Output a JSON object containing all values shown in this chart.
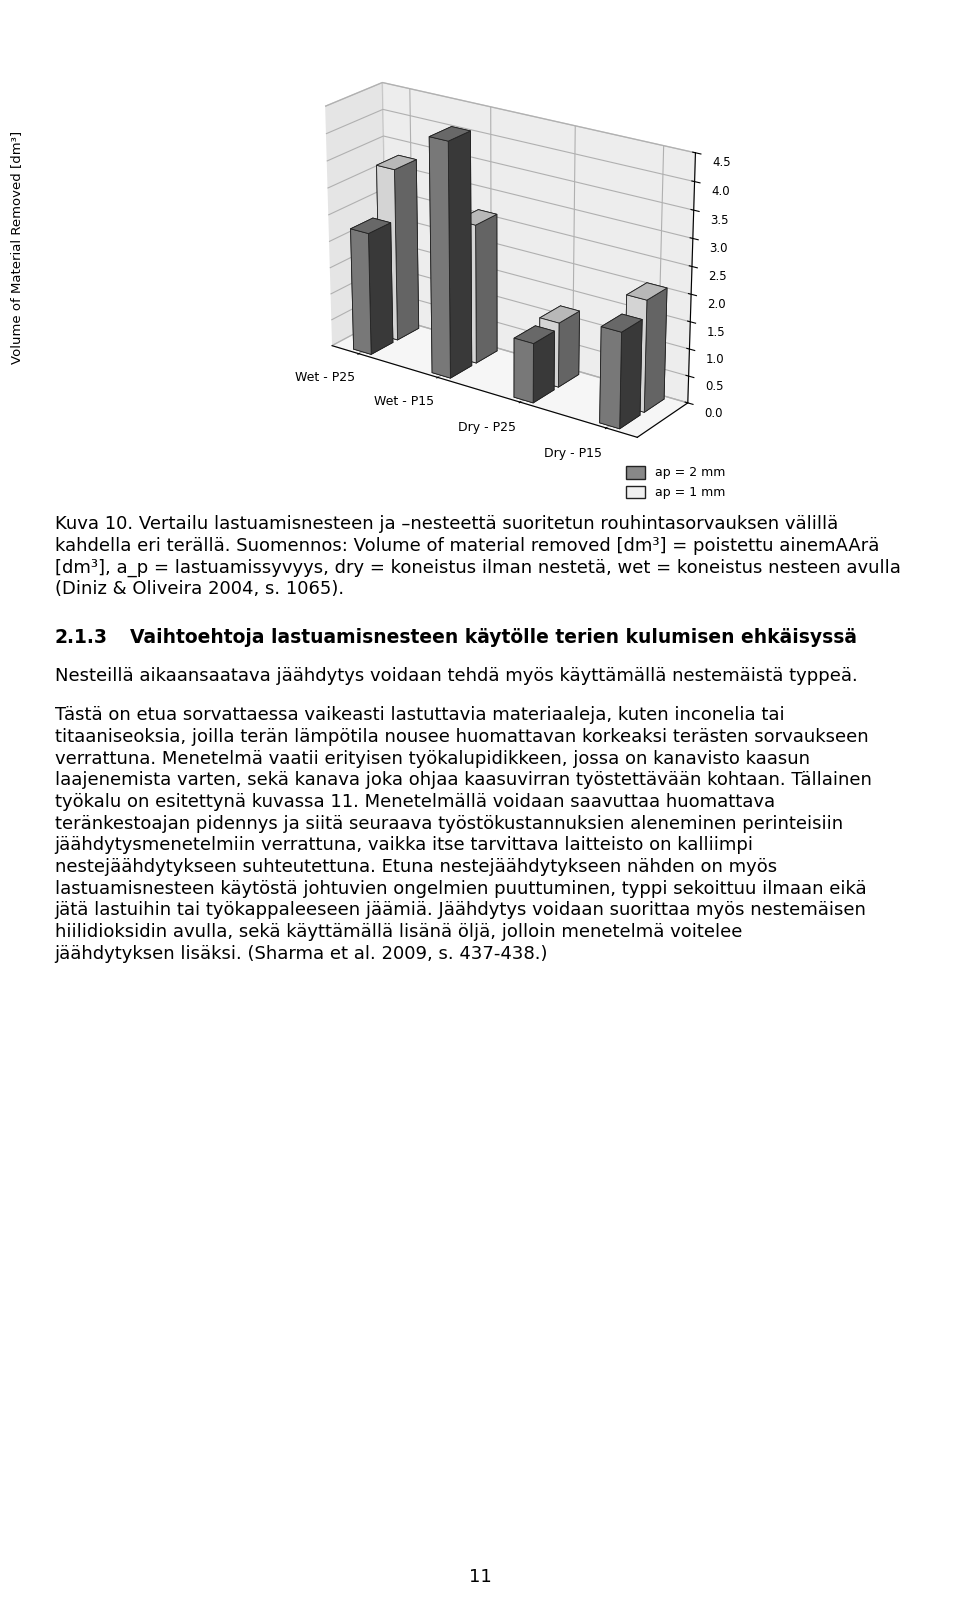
{
  "ylabel": "Volume of Material Removed [dm³]",
  "ylim": [
    0.0,
    4.5
  ],
  "yticks": [
    0.0,
    0.5,
    1.0,
    1.5,
    2.0,
    2.5,
    3.0,
    3.5,
    4.0,
    4.5
  ],
  "categories": [
    "Wet - P25",
    "Wet - P15",
    "Dry - P25",
    "Dry - P15"
  ],
  "series_labels": [
    "ap = 2 mm",
    "ap = 1 mm"
  ],
  "bars_ap2mm": [
    2.3,
    4.35,
    1.1,
    1.75
  ],
  "bars_ap1mm": [
    3.25,
    2.6,
    1.2,
    2.05
  ],
  "color_ap2mm_face": "#888888",
  "color_ap1mm_face": "#f0f0f0",
  "background_color": "#ffffff",
  "cap_lines": [
    "Kuva 10. Vertailu lastuamisnesteen ja –nesteettä suoritetun rouhintasorvauksen välillä",
    "kahdella eri terällä. Suomennos: Volume of material removed [dm³] = poistettu ainemAArä",
    "[dm³], a_p = lastuamissyvyys, dry = koneistus ilman nestetä, wet = koneistus nesteen avulla",
    "(Diniz & Oliveira 2004, s. 1065)."
  ],
  "section_num": "2.1.3",
  "section_title": "Vaihtoehtoja lastuamisnesteen käytölle terien kulumisen ehkäisyssä",
  "para1": "Nesteillä aikaansaatava jäähdytys voidaan tehdä myös käyttämällä nestemäistä typpeä.",
  "para2_lines": [
    "Tästä on etua sorvattaessa vaikeasti lastuttavia materiaaleja, kuten inconelia tai",
    "titaaniseoksia, joilla terän lämpötila nousee huomattavan korkeaksi terästen sorvaukseen",
    "verrattuna. Menetelmä vaatii erityisen työkalupidikkeen, jossa on kanavisto kaasun",
    "laajenemista varten, sekä kanava joka ohjaa kaasuvirran työstettävään kohtaan. Tällainen",
    "työkalu on esitettynä kuvassa 11. Menetelmällä voidaan saavuttaa huomattava",
    "teränkestoajan pidennys ja siitä seuraava työstökustannuksien aleneminen perinteisiin",
    "jäähdytysmenetelmiin verrattuna, vaikka itse tarvittava laitteisto on kalliimpi",
    "nestejäähdytykseen suhteutettuna. Etuna nestejäähdytykseen nähden on myös",
    "lastuamisnesteen käytöstä johtuvien ongelmien puuttuminen, typpi sekoittuu ilmaan eikä",
    "jätä lastuihin tai työkappaleeseen jäämiä. Jäähdytys voidaan suorittaa myös nestemäisen",
    "hiilidioksidin avulla, sekä käyttämällä lisänä öljä, jolloin menetelmä voitelee",
    "jäähdytyksen lisäksi. (Sharma et al. 2009, s. 437-438.)"
  ],
  "page_number": "11",
  "text_fontsize": 13.0,
  "heading_fontsize": 13.5
}
